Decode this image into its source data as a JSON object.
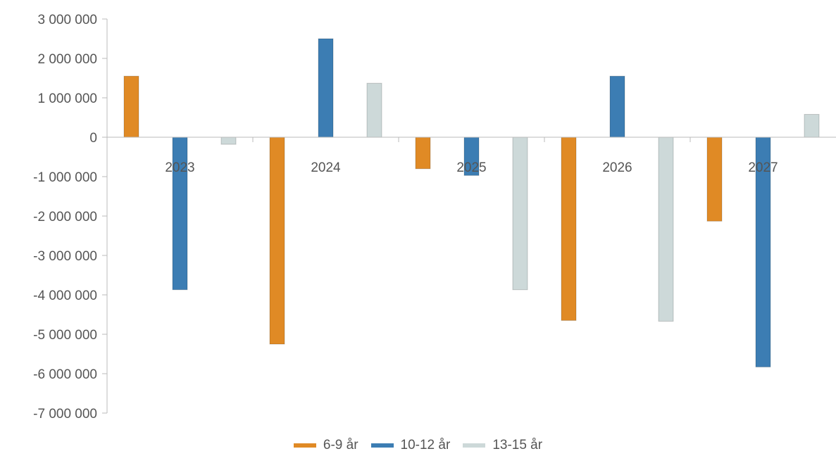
{
  "chart_data": {
    "type": "bar",
    "title": "",
    "xlabel": "",
    "ylabel": "",
    "categories": [
      "2023",
      "2024",
      "2025",
      "2026",
      "2027"
    ],
    "ylim": [
      -7000000,
      3000000
    ],
    "yticks": [
      3000000,
      2000000,
      1000000,
      0,
      -1000000,
      -2000000,
      -3000000,
      -4000000,
      -5000000,
      -6000000,
      -7000000
    ],
    "ytick_labels": [
      "3 000 000",
      "2 000 000",
      "1 000 000",
      "0",
      "-1 000 000",
      "-2 000 000",
      "-3 000 000",
      "-4 000 000",
      "-5 000 000",
      "-6 000 000",
      "-7 000 000"
    ],
    "grid": false,
    "legend_position": "bottom",
    "series": [
      {
        "name": "6-9 år",
        "color": "#e08a25",
        "values": [
          1550000,
          -5250000,
          -800000,
          -4650000,
          -2130000
        ]
      },
      {
        "name": "10-12 år",
        "color": "#3c7db3",
        "values": [
          -3870000,
          2500000,
          -970000,
          1550000,
          -5830000
        ]
      },
      {
        "name": "13-15 år",
        "color": "#cdd9d9",
        "values": [
          -180000,
          1370000,
          -3870000,
          -4670000,
          580000
        ]
      }
    ]
  }
}
